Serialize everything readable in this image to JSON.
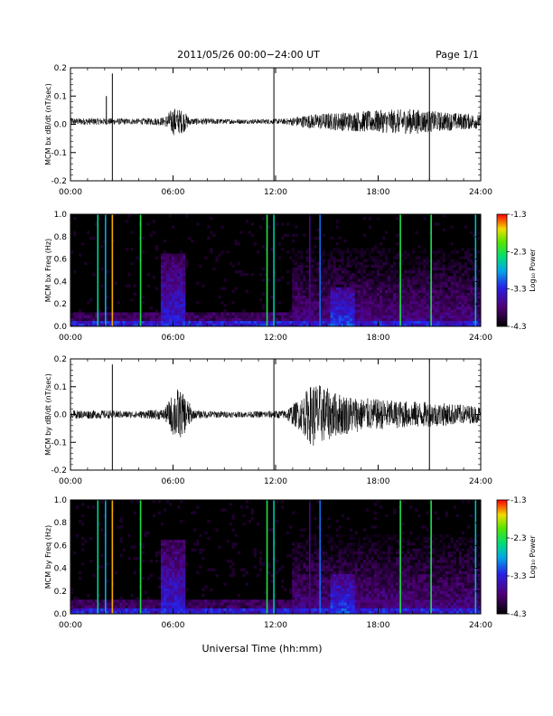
{
  "header": {
    "title": "2011/05/26  00:00−24:00 UT",
    "page": "Page 1/1"
  },
  "footer": {
    "xlabel": "Universal Time (hh:mm)"
  },
  "chart_data": [
    {
      "type": "line",
      "ylabel": "MCM bx dB/dt (nT/sec)",
      "xlim": [
        0,
        24
      ],
      "ylim": [
        -0.2,
        0.2
      ],
      "xticks": [
        "00:00",
        "06:00",
        "12:00",
        "18:00",
        "24:00"
      ],
      "yticks": [
        "-0.2",
        "-0.1",
        "0.0",
        "0.1",
        "0.2"
      ],
      "baseline": 0.01,
      "spikes": [
        {
          "x": 2.45,
          "y0": -0.2,
          "y1": 0.18
        },
        {
          "x": 11.9,
          "y0": -0.2,
          "y1": 0.2
        },
        {
          "x": 21.0,
          "y0": -0.2,
          "y1": 0.2
        },
        {
          "x": 2.1,
          "y0": 0.01,
          "y1": 0.1
        }
      ],
      "amplitude_envelope": [
        [
          0.0,
          0.012
        ],
        [
          2.0,
          0.012
        ],
        [
          4.0,
          0.01
        ],
        [
          5.5,
          0.015
        ],
        [
          6.0,
          0.05
        ],
        [
          6.6,
          0.04
        ],
        [
          7.0,
          0.012
        ],
        [
          10.0,
          0.008
        ],
        [
          12.5,
          0.01
        ],
        [
          14.0,
          0.025
        ],
        [
          15.0,
          0.03
        ],
        [
          16.5,
          0.035
        ],
        [
          18.0,
          0.04
        ],
        [
          20.0,
          0.045
        ],
        [
          21.5,
          0.035
        ],
        [
          24.0,
          0.025
        ]
      ]
    },
    {
      "type": "heatmap",
      "ylabel": "MCM bx Freq (Hz)",
      "xlim": [
        0,
        24
      ],
      "ylim": [
        0.0,
        1.0
      ],
      "xticks": [
        "00:00",
        "06:00",
        "12:00",
        "18:00",
        "24:00"
      ],
      "yticks": [
        "0.0",
        "0.2",
        "0.4",
        "0.6",
        "0.8",
        "1.0"
      ],
      "colorbar": {
        "label": "Log₁₀ Power",
        "ticks": [
          "-1.3",
          "-2.3",
          "-3.3",
          "-4.3"
        ],
        "range": [
          -4.3,
          -1.3
        ]
      },
      "vertical_lines": [
        {
          "x": 1.6,
          "level": -2.5
        },
        {
          "x": 2.05,
          "level": -2.8
        },
        {
          "x": 2.45,
          "level": -1.6
        },
        {
          "x": 4.1,
          "level": -2.3
        },
        {
          "x": 11.5,
          "level": -2.3
        },
        {
          "x": 11.9,
          "level": -2.6
        },
        {
          "x": 14.0,
          "level": -3.7
        },
        {
          "x": 14.6,
          "level": -3.0
        },
        {
          "x": 19.3,
          "level": -2.3
        },
        {
          "x": 21.1,
          "level": -2.3
        },
        {
          "x": 23.7,
          "level": -2.7
        }
      ],
      "activity": [
        {
          "t0": 5.3,
          "t1": 6.7,
          "f1": 0.65,
          "level": -3.5
        },
        {
          "t0": 15.2,
          "t1": 16.6,
          "f1": 0.35,
          "level": -3.3
        },
        {
          "t0": 13.0,
          "t1": 24.0,
          "f1": 0.7,
          "level": -3.9
        }
      ]
    },
    {
      "type": "line",
      "ylabel": "MCM by dB/dt (nT/sec)",
      "xlim": [
        0,
        24
      ],
      "ylim": [
        -0.2,
        0.2
      ],
      "xticks": [
        "00:00",
        "06:00",
        "12:00",
        "18:00",
        "24:00"
      ],
      "yticks": [
        "-0.2",
        "-0.1",
        "0.0",
        "0.1",
        "0.2"
      ],
      "baseline": 0.0,
      "spikes": [
        {
          "x": 2.45,
          "y0": -0.2,
          "y1": 0.18
        },
        {
          "x": 11.9,
          "y0": -0.2,
          "y1": 0.2
        },
        {
          "x": 21.0,
          "y0": -0.2,
          "y1": 0.2
        }
      ],
      "amplitude_envelope": [
        [
          0.0,
          0.015
        ],
        [
          2.0,
          0.015
        ],
        [
          4.0,
          0.012
        ],
        [
          5.5,
          0.02
        ],
        [
          6.2,
          0.1
        ],
        [
          6.8,
          0.06
        ],
        [
          7.2,
          0.015
        ],
        [
          10.0,
          0.01
        ],
        [
          12.5,
          0.015
        ],
        [
          13.5,
          0.06
        ],
        [
          14.2,
          0.12
        ],
        [
          15.5,
          0.08
        ],
        [
          17.0,
          0.06
        ],
        [
          19.0,
          0.05
        ],
        [
          21.0,
          0.045
        ],
        [
          24.0,
          0.03
        ]
      ]
    },
    {
      "type": "heatmap",
      "ylabel": "MCM by Freq (Hz)",
      "xlim": [
        0,
        24
      ],
      "ylim": [
        0.0,
        1.0
      ],
      "xticks": [
        "00:00",
        "06:00",
        "12:00",
        "18:00",
        "24:00"
      ],
      "yticks": [
        "0.0",
        "0.2",
        "0.4",
        "0.6",
        "0.8",
        "1.0"
      ],
      "colorbar": {
        "label": "Log₁₀ Power",
        "ticks": [
          "-1.3",
          "-2.3",
          "-3.3",
          "-4.3"
        ],
        "range": [
          -4.3,
          -1.3
        ]
      },
      "vertical_lines": [
        {
          "x": 1.6,
          "level": -2.5
        },
        {
          "x": 2.05,
          "level": -2.8
        },
        {
          "x": 2.45,
          "level": -1.6
        },
        {
          "x": 4.1,
          "level": -2.3
        },
        {
          "x": 11.5,
          "level": -2.3
        },
        {
          "x": 11.9,
          "level": -2.6
        },
        {
          "x": 14.0,
          "level": -3.7
        },
        {
          "x": 14.6,
          "level": -3.0
        },
        {
          "x": 19.3,
          "level": -2.3
        },
        {
          "x": 21.1,
          "level": -2.3
        },
        {
          "x": 23.7,
          "level": -2.7
        }
      ],
      "activity": [
        {
          "t0": 5.3,
          "t1": 6.7,
          "f1": 0.65,
          "level": -3.5
        },
        {
          "t0": 15.2,
          "t1": 16.6,
          "f1": 0.35,
          "level": -3.3
        },
        {
          "t0": 13.0,
          "t1": 24.0,
          "f1": 0.7,
          "level": -3.9
        }
      ]
    }
  ]
}
